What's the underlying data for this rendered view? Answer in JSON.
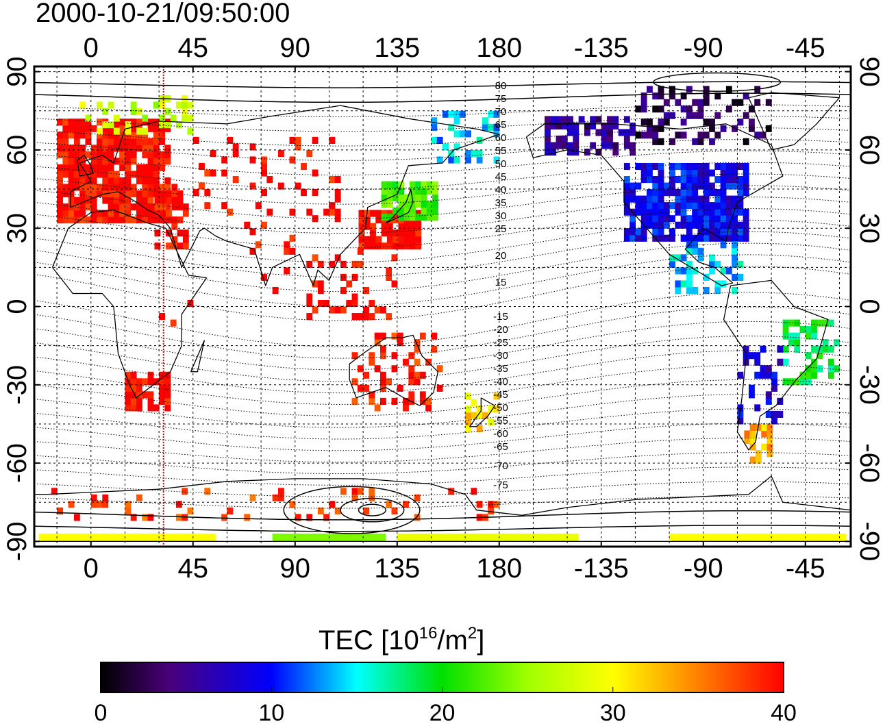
{
  "map": {
    "timestamp": "2000-10-21/09:50:00",
    "lon_ticks": [
      "0",
      "45",
      "90",
      "135",
      "180",
      "-135",
      "-90",
      "-45"
    ],
    "lon_values": [
      0,
      45,
      90,
      135,
      180,
      225,
      270,
      315
    ],
    "lat_ticks": [
      "90",
      "60",
      "30",
      "0",
      "-30",
      "-60",
      "-90"
    ],
    "lat_values": [
      90,
      60,
      30,
      0,
      -30,
      -60,
      -90
    ],
    "lon_range": [
      -25,
      335
    ],
    "lat_range": [
      -92,
      92
    ],
    "grid": true,
    "terminator_lon": 32,
    "dip_labels_north": [
      "80",
      "75",
      "70",
      "65",
      "60",
      "55",
      "50",
      "45",
      "40",
      "35",
      "30",
      "25",
      "20",
      "15"
    ],
    "dip_labels_south": [
      "-15",
      "-20",
      "-25",
      "-30",
      "-35",
      "-40",
      "-45",
      "-50",
      "-55",
      "-60",
      "-65",
      "-70",
      "-75"
    ]
  },
  "colorbar": {
    "title_prefix": "TEC  [10",
    "title_exp1": "16",
    "title_mid": "/m",
    "title_exp2": "2",
    "title_suffix": "]",
    "ticks": [
      "0",
      "10",
      "20",
      "30",
      "40"
    ],
    "tick_values": [
      0,
      10,
      20,
      30,
      40
    ],
    "range": [
      0,
      40
    ],
    "stops": [
      {
        "v": 0,
        "color": "#000000"
      },
      {
        "v": 4,
        "color": "#4a007a"
      },
      {
        "v": 10,
        "color": "#0000ff"
      },
      {
        "v": 15,
        "color": "#00ffff"
      },
      {
        "v": 20,
        "color": "#00e000"
      },
      {
        "v": 25,
        "color": "#a0ff00"
      },
      {
        "v": 30,
        "color": "#ffff00"
      },
      {
        "v": 35,
        "color": "#ff8000"
      },
      {
        "v": 40,
        "color": "#ff0000"
      }
    ]
  },
  "tec_regions": [
    {
      "name": "europe",
      "lon": [
        -15,
        35
      ],
      "lat": [
        32,
        70
      ],
      "v": 40,
      "fill": 0.85
    },
    {
      "name": "north-europe",
      "lon": [
        -5,
        45
      ],
      "lat": [
        66,
        80
      ],
      "v": 27,
      "fill": 0.3
    },
    {
      "name": "middle-east",
      "lon": [
        28,
        42
      ],
      "lat": [
        22,
        45
      ],
      "v": 40,
      "fill": 0.5
    },
    {
      "name": "central-asia",
      "lon": [
        45,
        110
      ],
      "lat": [
        30,
        65
      ],
      "v": 40,
      "fill": 0.12
    },
    {
      "name": "east-asia-south",
      "lon": [
        118,
        145
      ],
      "lat": [
        22,
        36
      ],
      "v": 40,
      "fill": 0.9
    },
    {
      "name": "japan",
      "lon": [
        128,
        152
      ],
      "lat": [
        33,
        48
      ],
      "v": 22,
      "fill": 0.85
    },
    {
      "name": "east-siberia",
      "lon": [
        150,
        180
      ],
      "lat": [
        55,
        75
      ],
      "v": 14,
      "fill": 0.3
    },
    {
      "name": "se-asia",
      "lon": [
        95,
        135
      ],
      "lat": [
        -5,
        22
      ],
      "v": 40,
      "fill": 0.25
    },
    {
      "name": "india",
      "lon": [
        70,
        90
      ],
      "lat": [
        5,
        30
      ],
      "v": 40,
      "fill": 0.1
    },
    {
      "name": "africa-east",
      "lon": [
        30,
        45
      ],
      "lat": [
        -10,
        10
      ],
      "v": 40,
      "fill": 0.1
    },
    {
      "name": "south-africa",
      "lon": [
        15,
        35
      ],
      "lat": [
        -40,
        -25
      ],
      "v": 40,
      "fill": 0.7
    },
    {
      "name": "australia",
      "lon": [
        115,
        155
      ],
      "lat": [
        -40,
        -12
      ],
      "v": 39,
      "fill": 0.3
    },
    {
      "name": "new-zealand",
      "lon": [
        165,
        180
      ],
      "lat": [
        -48,
        -35
      ],
      "v": 31,
      "fill": 0.5
    },
    {
      "name": "alaska-canada",
      "lon": [
        200,
        240
      ],
      "lat": [
        58,
        72
      ],
      "v": 5,
      "fill": 0.6
    },
    {
      "name": "north-america",
      "lon": [
        235,
        290
      ],
      "lat": [
        25,
        55
      ],
      "v": 9,
      "fill": 0.85
    },
    {
      "name": "canada-north",
      "lon": [
        240,
        300
      ],
      "lat": [
        62,
        84
      ],
      "v": 3,
      "fill": 0.3
    },
    {
      "name": "central-america",
      "lon": [
        255,
        290
      ],
      "lat": [
        5,
        25
      ],
      "v": 14,
      "fill": 0.35
    },
    {
      "name": "brazil",
      "lon": [
        305,
        330
      ],
      "lat": [
        -30,
        -5
      ],
      "v": 19,
      "fill": 0.45
    },
    {
      "name": "south-america",
      "lon": [
        285,
        305
      ],
      "lat": [
        -45,
        -15
      ],
      "v": 8,
      "fill": 0.3
    },
    {
      "name": "patagonia",
      "lon": [
        288,
        300
      ],
      "lat": [
        -60,
        -45
      ],
      "v": 33,
      "fill": 0.4
    },
    {
      "name": "antarctic-ring",
      "lon": [
        -20,
        180
      ],
      "lat": [
        -82,
        -70
      ],
      "v": 38,
      "fill": 0.12
    }
  ],
  "tec_bands": [
    {
      "lon": [
        -23,
        55
      ],
      "lat": [
        -90,
        -87
      ],
      "v": 30
    },
    {
      "lon": [
        80,
        130
      ],
      "lat": [
        -90,
        -87
      ],
      "v": 24
    },
    {
      "lon": [
        135,
        215
      ],
      "lat": [
        -90,
        -87
      ],
      "v": 29
    },
    {
      "lon": [
        255,
        333
      ],
      "lat": [
        -90,
        -87
      ],
      "v": 30
    }
  ],
  "coastlines": [
    {
      "name": "africa",
      "pts": [
        [
          -17,
          15
        ],
        [
          -10,
          30
        ],
        [
          0,
          36
        ],
        [
          10,
          37
        ],
        [
          25,
          32
        ],
        [
          33,
          30
        ],
        [
          43,
          12
        ],
        [
          51,
          11
        ],
        [
          40,
          -3
        ],
        [
          40,
          -15
        ],
        [
          35,
          -25
        ],
        [
          20,
          -35
        ],
        [
          17,
          -30
        ],
        [
          12,
          -18
        ],
        [
          10,
          0
        ],
        [
          5,
          5
        ],
        [
          -8,
          5
        ],
        [
          -17,
          15
        ]
      ]
    },
    {
      "name": "eurasia",
      "pts": [
        [
          -9,
          38
        ],
        [
          -9,
          44
        ],
        [
          0,
          48
        ],
        [
          -5,
          55
        ],
        [
          5,
          58
        ],
        [
          10,
          55
        ],
        [
          15,
          68
        ],
        [
          30,
          71
        ],
        [
          60,
          70
        ],
        [
          80,
          73
        ],
        [
          110,
          77
        ],
        [
          140,
          72
        ],
        [
          170,
          68
        ],
        [
          180,
          66
        ],
        [
          160,
          60
        ],
        [
          155,
          55
        ],
        [
          140,
          54
        ],
        [
          135,
          43
        ],
        [
          122,
          38
        ],
        [
          121,
          30
        ],
        [
          110,
          20
        ],
        [
          105,
          10
        ],
        [
          100,
          14
        ],
        [
          98,
          8
        ],
        [
          92,
          20
        ],
        [
          80,
          15
        ],
        [
          77,
          8
        ],
        [
          72,
          22
        ],
        [
          60,
          25
        ],
        [
          55,
          27
        ],
        [
          50,
          30
        ],
        [
          48,
          29
        ],
        [
          40,
          15
        ],
        [
          35,
          30
        ],
        [
          30,
          35
        ],
        [
          25,
          37
        ],
        [
          20,
          40
        ],
        [
          12,
          44
        ],
        [
          5,
          43
        ],
        [
          -9,
          38
        ]
      ]
    },
    {
      "name": "australia",
      "pts": [
        [
          114,
          -22
        ],
        [
          120,
          -18
        ],
        [
          130,
          -12
        ],
        [
          137,
          -12
        ],
        [
          142,
          -11
        ],
        [
          146,
          -19
        ],
        [
          153,
          -25
        ],
        [
          151,
          -33
        ],
        [
          145,
          -38
        ],
        [
          138,
          -35
        ],
        [
          130,
          -31
        ],
        [
          117,
          -35
        ],
        [
          114,
          -28
        ],
        [
          114,
          -22
        ]
      ]
    },
    {
      "name": "north-america",
      "pts": [
        [
          192,
          65
        ],
        [
          200,
          70
        ],
        [
          230,
          70
        ],
        [
          260,
          68
        ],
        [
          280,
          70
        ],
        [
          300,
          62
        ],
        [
          305,
          50
        ],
        [
          295,
          45
        ],
        [
          285,
          40
        ],
        [
          281,
          30
        ],
        [
          280,
          25
        ],
        [
          270,
          30
        ],
        [
          262,
          22
        ],
        [
          268,
          17
        ],
        [
          275,
          15
        ],
        [
          283,
          9
        ],
        [
          278,
          8
        ],
        [
          255,
          20
        ],
        [
          245,
          30
        ],
        [
          235,
          40
        ],
        [
          235,
          48
        ],
        [
          225,
          58
        ],
        [
          210,
          60
        ],
        [
          195,
          57
        ],
        [
          192,
          65
        ]
      ]
    },
    {
      "name": "greenland",
      "pts": [
        [
          300,
          60
        ],
        [
          310,
          62
        ],
        [
          320,
          70
        ],
        [
          330,
          80
        ],
        [
          300,
          82
        ],
        [
          290,
          80
        ],
        [
          300,
          60
        ]
      ]
    },
    {
      "name": "south-america",
      "pts": [
        [
          282,
          8
        ],
        [
          300,
          10
        ],
        [
          310,
          0
        ],
        [
          325,
          -5
        ],
        [
          320,
          -20
        ],
        [
          311,
          -28
        ],
        [
          302,
          -38
        ],
        [
          295,
          -42
        ],
        [
          293,
          -52
        ],
        [
          290,
          -55
        ],
        [
          285,
          -48
        ],
        [
          287,
          -35
        ],
        [
          289,
          -18
        ],
        [
          279,
          -5
        ],
        [
          282,
          8
        ]
      ]
    },
    {
      "name": "antarctica",
      "pts": [
        [
          -20,
          -72
        ],
        [
          30,
          -70
        ],
        [
          60,
          -67
        ],
        [
          90,
          -66
        ],
        [
          120,
          -66
        ],
        [
          150,
          -68
        ],
        [
          165,
          -72
        ],
        [
          170,
          -78
        ],
        [
          190,
          -80
        ],
        [
          210,
          -77
        ],
        [
          240,
          -74
        ],
        [
          290,
          -72
        ],
        [
          300,
          -65
        ],
        [
          305,
          -75
        ],
        [
          335,
          -78
        ],
        [
          335,
          -90
        ],
        [
          -25,
          -90
        ],
        [
          -25,
          -72
        ],
        [
          -20,
          -72
        ]
      ]
    },
    {
      "name": "new-zealand",
      "pts": [
        [
          172,
          -35
        ],
        [
          178,
          -38
        ],
        [
          175,
          -42
        ],
        [
          170,
          -46
        ],
        [
          167,
          -46
        ],
        [
          172,
          -40
        ],
        [
          172,
          -35
        ]
      ]
    },
    {
      "name": "japan",
      "pts": [
        [
          130,
          32
        ],
        [
          135,
          34
        ],
        [
          140,
          36
        ],
        [
          142,
          40
        ],
        [
          141,
          45
        ],
        [
          139,
          40
        ],
        [
          133,
          34
        ],
        [
          130,
          32
        ]
      ]
    },
    {
      "name": "uk",
      "pts": [
        [
          -5,
          50
        ],
        [
          1,
          51
        ],
        [
          0,
          54
        ],
        [
          -3,
          58
        ],
        [
          -6,
          56
        ],
        [
          -5,
          50
        ]
      ]
    },
    {
      "name": "madagascar",
      "pts": [
        [
          44,
          -25
        ],
        [
          49,
          -15
        ],
        [
          50,
          -13
        ],
        [
          47,
          -25
        ],
        [
          44,
          -25
        ]
      ]
    }
  ]
}
